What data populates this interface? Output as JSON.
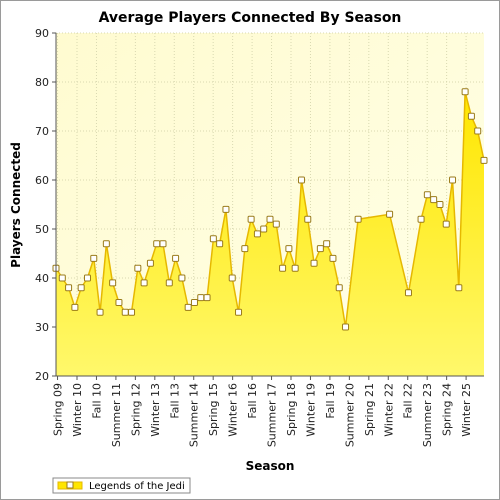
{
  "chart_data": {
    "type": "area",
    "title": "Average Players Connected By Season",
    "xlabel": "Season",
    "ylabel": "Players Connected",
    "ylim": [
      20,
      90
    ],
    "yticks": [
      20,
      30,
      40,
      50,
      60,
      70,
      80,
      90
    ],
    "grid": true,
    "legend_position": "bottom-left",
    "x_tick_labels": [
      "Spring 09",
      "Winter 10",
      "Fall 10",
      "Summer 11",
      "Spring 12",
      "Winter 13",
      "Fall 13",
      "Summer 14",
      "Spring 15",
      "Winter 16",
      "Fall 16",
      "Summer 17",
      "Spring 18",
      "Winter 19",
      "Fall 19",
      "Summer 20",
      "Spring 21",
      "Winter 22",
      "Fall 22",
      "Summer 23",
      "Spring 24",
      "Winter 25"
    ],
    "series": [
      {
        "name": "Legends of the Jedi",
        "points": [
          {
            "x": 0,
            "y": 42
          },
          {
            "x": 1,
            "y": 40
          },
          {
            "x": 2,
            "y": 38
          },
          {
            "x": 3,
            "y": 34
          },
          {
            "x": 4,
            "y": 38
          },
          {
            "x": 5,
            "y": 40
          },
          {
            "x": 6,
            "y": 44
          },
          {
            "x": 7,
            "y": 33
          },
          {
            "x": 8,
            "y": 47
          },
          {
            "x": 9,
            "y": 39
          },
          {
            "x": 10,
            "y": 35
          },
          {
            "x": 11,
            "y": 33
          },
          {
            "x": 12,
            "y": 33
          },
          {
            "x": 13,
            "y": 42
          },
          {
            "x": 14,
            "y": 39
          },
          {
            "x": 15,
            "y": 43
          },
          {
            "x": 16,
            "y": 47
          },
          {
            "x": 17,
            "y": 47
          },
          {
            "x": 18,
            "y": 39
          },
          {
            "x": 19,
            "y": 44
          },
          {
            "x": 20,
            "y": 40
          },
          {
            "x": 21,
            "y": 34
          },
          {
            "x": 22,
            "y": 35
          },
          {
            "x": 23,
            "y": 36
          },
          {
            "x": 24,
            "y": 36
          },
          {
            "x": 25,
            "y": 48
          },
          {
            "x": 26,
            "y": 47
          },
          {
            "x": 27,
            "y": 54
          },
          {
            "x": 28,
            "y": 40
          },
          {
            "x": 29,
            "y": 33
          },
          {
            "x": 30,
            "y": 46
          },
          {
            "x": 31,
            "y": 52
          },
          {
            "x": 32,
            "y": 49
          },
          {
            "x": 33,
            "y": 50
          },
          {
            "x": 34,
            "y": 52
          },
          {
            "x": 35,
            "y": 51
          },
          {
            "x": 36,
            "y": 42
          },
          {
            "x": 37,
            "y": 46
          },
          {
            "x": 38,
            "y": 42
          },
          {
            "x": 39,
            "y": 60
          },
          {
            "x": 40,
            "y": 52
          },
          {
            "x": 41,
            "y": 43
          },
          {
            "x": 42,
            "y": 46
          },
          {
            "x": 43,
            "y": 47
          },
          {
            "x": 44,
            "y": 44
          },
          {
            "x": 45,
            "y": 38
          },
          {
            "x": 46,
            "y": 30
          },
          {
            "x": 48,
            "y": 52
          },
          {
            "x": 53,
            "y": 53
          },
          {
            "x": 56,
            "y": 37
          },
          {
            "x": 58,
            "y": 52
          },
          {
            "x": 59,
            "y": 57
          },
          {
            "x": 60,
            "y": 56
          },
          {
            "x": 61,
            "y": 55
          },
          {
            "x": 62,
            "y": 51
          },
          {
            "x": 63,
            "y": 60
          },
          {
            "x": 64,
            "y": 38
          },
          {
            "x": 65,
            "y": 78
          },
          {
            "x": 66,
            "y": 73
          },
          {
            "x": 67,
            "y": 70
          },
          {
            "x": 68,
            "y": 64
          }
        ]
      }
    ]
  },
  "colors": {
    "fill_top": "#ffe600",
    "fill_bottom": "#fff86b",
    "line": "#e6b800",
    "marker_stroke": "#9a7b1a",
    "marker_fill": "#ffffff",
    "plot_bg": "#fffde0",
    "grid": "#d8d8b0"
  }
}
